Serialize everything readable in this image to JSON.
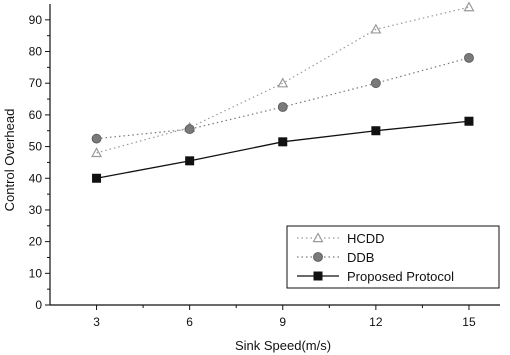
{
  "chart_data": {
    "type": "line",
    "xlabel": "Sink Speed(m/s)",
    "ylabel": "Control Overhead",
    "x": [
      3,
      6,
      9,
      12,
      15
    ],
    "xlim": [
      1.5,
      16
    ],
    "ylim": [
      0,
      95
    ],
    "xticks": [
      3,
      6,
      9,
      12,
      15
    ],
    "yticks": [
      0,
      10,
      20,
      30,
      40,
      50,
      60,
      70,
      80,
      90
    ],
    "grid": false,
    "legend_position": "bottom-right",
    "series": [
      {
        "name": "HCDD",
        "values": [
          48,
          56,
          70,
          87,
          94
        ],
        "marker": "triangle",
        "line": "dotted",
        "color": "#9a9a9a"
      },
      {
        "name": "DDB",
        "values": [
          52.5,
          55.5,
          62.5,
          70,
          78
        ],
        "marker": "circle",
        "line": "dotted",
        "color": "#7a7a7a"
      },
      {
        "name": "Proposed Protocol",
        "values": [
          40,
          45.5,
          51.5,
          55,
          58
        ],
        "marker": "square",
        "line": "solid",
        "color": "#111111"
      }
    ]
  }
}
